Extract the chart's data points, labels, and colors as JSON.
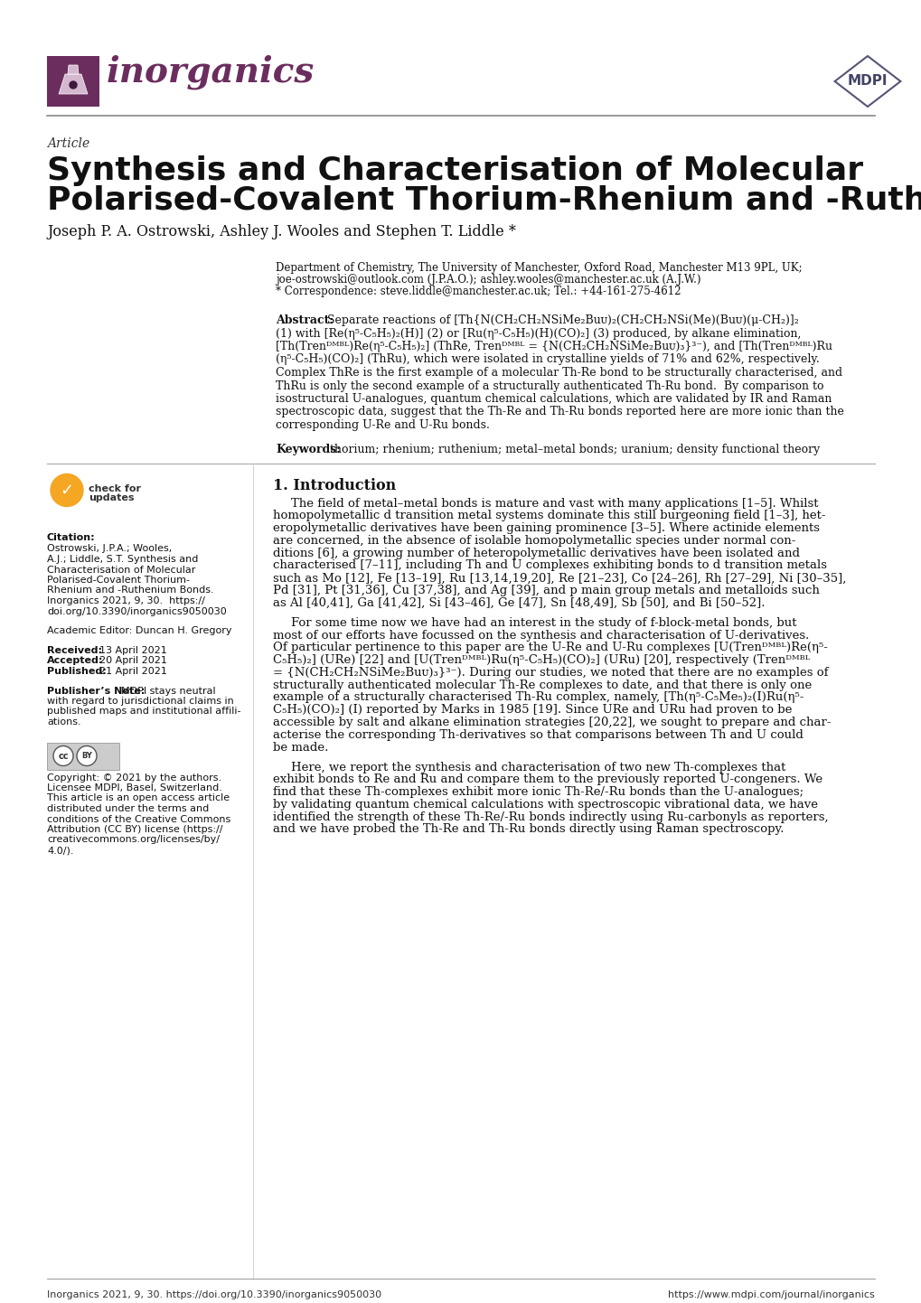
{
  "bg_color": "#ffffff",
  "header_color": "#6b2d5e",
  "journal_name": "inorganics",
  "article_label": "Article",
  "title_line1": "Synthesis and Characterisation of Molecular",
  "title_line2": "Polarised-Covalent Thorium-Rhenium and -Ruthenium Bonds",
  "authors": "Joseph P. A. Ostrowski, Ashley J. Wooles and Stephen T. Liddle *",
  "aff1": "Department of Chemistry, The University of Manchester, Oxford Road, Manchester M13 9PL, UK;",
  "aff2": "joe-ostrowski@outlook.com (J.P.A.O.); ashley.wooles@manchester.ac.uk (A.J.W.)",
  "aff3": "* Correspondence: steve.liddle@manchester.ac.uk; Tel.: +44-161-275-4612",
  "abstract_lines": [
    "Separate reactions of [Th{N(CH₂CH₂NSiMe₂Buᴜ)₂(CH₂CH₂NSi(Me)(Buᴜ)(μ-CH₂)]₂",
    "(1) with [Re(η⁵-C₅H₅)₂(H)] (2) or [Ru(η⁵-C₅H₅)(H)(CO)₂] (3) produced, by alkane elimination,",
    "[Th(Trenᴰᴹᴮᴸ)Re(η⁵-C₅H₅)₂] (ThRe, Trenᴰᴹᴮᴸ = {N(CH₂CH₂NSiMe₂Buᴜ)₃}³⁻), and [Th(Trenᴰᴹᴮᴸ)Ru",
    "(η⁵-C₅H₅)(CO)₂] (ThRu), which were isolated in crystalline yields of 71% and 62%, respectively.",
    "Complex ThRe is the first example of a molecular Th-Re bond to be structurally characterised, and",
    "ThRu is only the second example of a structurally authenticated Th-Ru bond.  By comparison to",
    "isostructural U-analogues, quantum chemical calculations, which are validated by IR and Raman",
    "spectroscopic data, suggest that the Th-Re and Th-Ru bonds reported here are more ionic than the",
    "corresponding U-Re and U-Ru bonds."
  ],
  "abstract_bold_words": [
    "ThRe",
    "ThRu"
  ],
  "keywords_text": "thorium; rhenium; ruthenium; metal–metal bonds; uranium; density functional theory",
  "citation_lines": [
    "Ostrowski, J.P.A.; Wooles,",
    "A.J.; Liddle, S.T. Synthesis and",
    "Characterisation of Molecular",
    "Polarised-Covalent Thorium-",
    "Rhenium and -Ruthenium Bonds.",
    "Inorganics 2021, 9, 30.  https://",
    "doi.org/10.3390/inorganics9050030"
  ],
  "editor_text": "Academic Editor: Duncan H. Gregory",
  "received_text": "Received: 13 April 2021",
  "accepted_text": "Accepted: 20 April 2021",
  "published_text": "Published: 21 April 2021",
  "publisher_note_lines": [
    "MDPI stays neutral",
    "with regard to jurisdictional claims in",
    "published maps and institutional affili-",
    "ations."
  ],
  "copyright_lines": [
    "Copyright: © 2021 by the authors.",
    "Licensee MDPI, Basel, Switzerland.",
    "This article is an open access article",
    "distributed under the terms and",
    "conditions of the Creative Commons",
    "Attribution (CC BY) license (https://",
    "creativecommons.org/licenses/by/",
    "4.0/)."
  ],
  "intro_heading": "1. Introduction",
  "intro_p1_lines": [
    "The field of metal–metal bonds is mature and vast with many applications [1–5]. Whilst",
    "homopolymetallic d transition metal systems dominate this still burgeoning field [1–3], het-",
    "eropolymetallic derivatives have been gaining prominence [3–5]. Where actinide elements",
    "are concerned, in the absence of isolable homopolymetallic species under normal con-",
    "ditions [6], a growing number of heteropolymetallic derivatives have been isolated and",
    "characterised [7–11], including Th and U complexes exhibiting bonds to d transition metals",
    "such as Mo [12], Fe [13–19], Ru [13,14,19,20], Re [21–23], Co [24–26], Rh [27–29], Ni [30–35],",
    "Pd [31], Pt [31,36], Cu [37,38], and Ag [39], and p main group metals and metalloids such",
    "as Al [40,41], Ga [41,42], Si [43–46], Ge [47], Sn [48,49], Sb [50], and Bi [50–52]."
  ],
  "intro_p2_lines": [
    "For some time now we have had an interest in the study of f-block-metal bonds, but",
    "most of our efforts have focussed on the synthesis and characterisation of U-derivatives.",
    "Of particular pertinence to this paper are the U-Re and U-Ru complexes [U(Trenᴰᴹᴮᴸ)Re(η⁵-",
    "C₅H₅)₂] (URe) [22] and [U(Trenᴰᴹᴮᴸ)Ru(η⁵-C₅H₅)(CO)₂] (URu) [20], respectively (Trenᴰᴹᴮᴸ",
    "= {N(CH₂CH₂NSiMe₂Buᴜ)₃}³⁻). During our studies, we noted that there are no examples of",
    "structurally authenticated molecular Th-Re complexes to date, and that there is only one",
    "example of a structurally characterised Th-Ru complex, namely, [Th(η⁵-C₅Me₅)₂(I)Ru(η⁵-",
    "C₅H₅)(CO)₂] (I) reported by Marks in 1985 [19]. Since URe and URu had proven to be",
    "accessible by salt and alkane elimination strategies [20,22], we sought to prepare and char-",
    "acterise the corresponding Th-derivatives so that comparisons between Th and U could",
    "be made."
  ],
  "intro_p3_lines": [
    "Here, we report the synthesis and characterisation of two new Th-complexes that",
    "exhibit bonds to Re and Ru and compare them to the previously reported U-congeners. We",
    "find that these Th-complexes exhibit more ionic Th-Re/-Ru bonds than the U-analogues;",
    "by validating quantum chemical calculations with spectroscopic vibrational data, we have",
    "identified the strength of these Th-Re/-Ru bonds indirectly using Ru-carbonyls as reporters,",
    "and we have probed the Th-Re and Th-Ru bonds directly using Raman spectroscopy."
  ],
  "footer_left": "Inorganics 2021, 9, 30. https://doi.org/10.3390/inorganics9050030",
  "footer_right": "https://www.mdpi.com/journal/inorganics"
}
